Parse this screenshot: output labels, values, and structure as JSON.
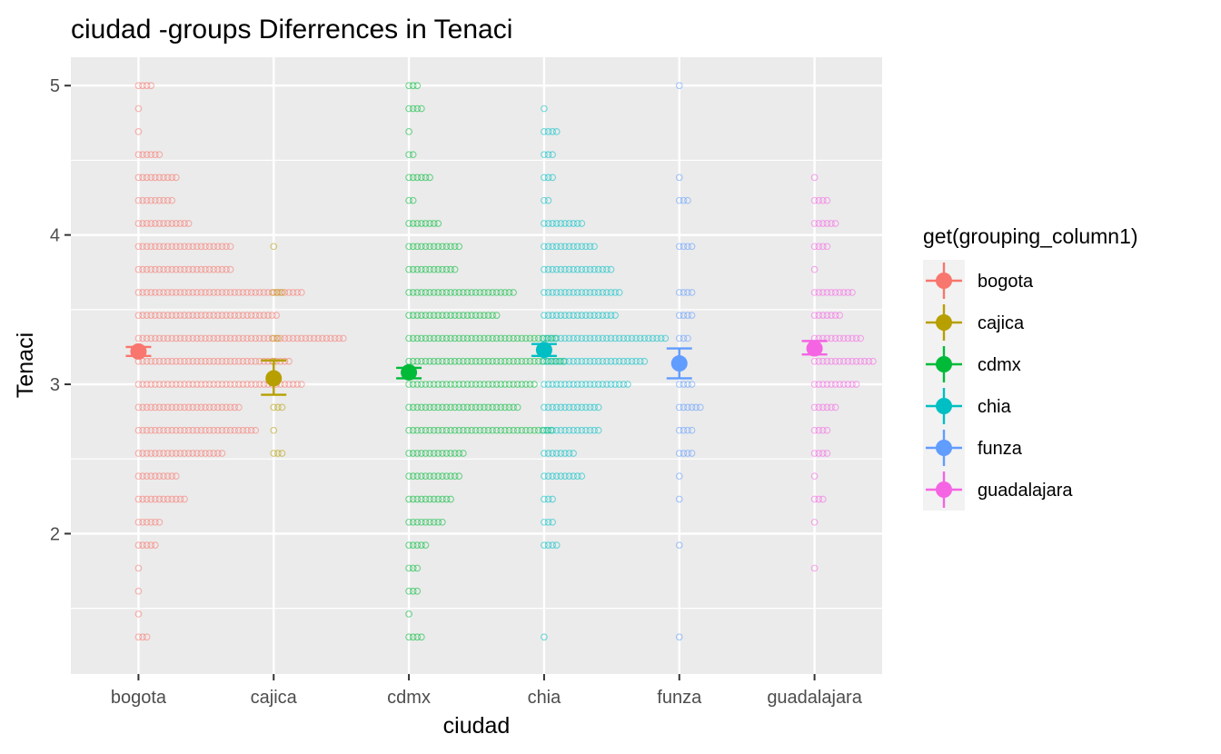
{
  "chart_data": {
    "type": "scatter",
    "title": "ciudad -groups Diferrences in  Tenaci",
    "xlabel": "ciudad",
    "ylabel": "Tenaci",
    "categories": [
      "bogota",
      "cajica",
      "cdmx",
      "chia",
      "funza",
      "guadalajara"
    ],
    "ylim": [
      1.06,
      5.19
    ],
    "yticks": [
      2,
      3,
      4,
      5
    ],
    "grid": true,
    "legend": {
      "title": "get(grouping_column1)",
      "position": "right",
      "entries": [
        "bogota",
        "cajica",
        "cdmx",
        "chia",
        "funza",
        "guadalajara"
      ]
    },
    "colors": {
      "bogota": "#F8766D",
      "cajica": "#B79F00",
      "cdmx": "#00BA38",
      "chia": "#00BFC4",
      "funza": "#619CFF",
      "guadalajara": "#F564E3"
    },
    "series": [
      {
        "name": "bogota",
        "mean": 3.22,
        "ci_low": 3.19,
        "ci_high": 3.25,
        "dotplot": [
          {
            "y": 5.0,
            "count": 4
          },
          {
            "y": 4.846,
            "count": 1
          },
          {
            "y": 4.692,
            "count": 1
          },
          {
            "y": 4.538,
            "count": 6
          },
          {
            "y": 4.385,
            "count": 10
          },
          {
            "y": 4.231,
            "count": 9
          },
          {
            "y": 4.077,
            "count": 13
          },
          {
            "y": 3.923,
            "count": 23
          },
          {
            "y": 3.769,
            "count": 23
          },
          {
            "y": 3.615,
            "count": 40
          },
          {
            "y": 3.462,
            "count": 34
          },
          {
            "y": 3.308,
            "count": 50
          },
          {
            "y": 3.154,
            "count": 37
          },
          {
            "y": 3.0,
            "count": 40
          },
          {
            "y": 2.846,
            "count": 25
          },
          {
            "y": 2.692,
            "count": 29
          },
          {
            "y": 2.538,
            "count": 21
          },
          {
            "y": 2.385,
            "count": 10
          },
          {
            "y": 2.231,
            "count": 12
          },
          {
            "y": 2.077,
            "count": 6
          },
          {
            "y": 1.923,
            "count": 5
          },
          {
            "y": 1.769,
            "count": 1
          },
          {
            "y": 1.615,
            "count": 1
          },
          {
            "y": 1.462,
            "count": 1
          },
          {
            "y": 1.308,
            "count": 3
          }
        ]
      },
      {
        "name": "cajica",
        "mean": 3.04,
        "ci_low": 2.93,
        "ci_high": 3.16,
        "dotplot": [
          {
            "y": 3.923,
            "count": 1
          },
          {
            "y": 3.615,
            "count": 3
          },
          {
            "y": 3.308,
            "count": 2
          },
          {
            "y": 3.154,
            "count": 1
          },
          {
            "y": 2.846,
            "count": 3
          },
          {
            "y": 2.692,
            "count": 1
          },
          {
            "y": 2.538,
            "count": 3
          }
        ]
      },
      {
        "name": "cdmx",
        "mean": 3.08,
        "ci_low": 3.04,
        "ci_high": 3.11,
        "dotplot": [
          {
            "y": 5.0,
            "count": 3
          },
          {
            "y": 4.846,
            "count": 4
          },
          {
            "y": 4.692,
            "count": 1
          },
          {
            "y": 4.538,
            "count": 2
          },
          {
            "y": 4.385,
            "count": 6
          },
          {
            "y": 4.231,
            "count": 2
          },
          {
            "y": 4.077,
            "count": 8
          },
          {
            "y": 3.923,
            "count": 13
          },
          {
            "y": 3.769,
            "count": 12
          },
          {
            "y": 3.615,
            "count": 26
          },
          {
            "y": 3.462,
            "count": 22
          },
          {
            "y": 3.308,
            "count": 36
          },
          {
            "y": 3.154,
            "count": 38
          },
          {
            "y": 3.0,
            "count": 31
          },
          {
            "y": 2.846,
            "count": 27
          },
          {
            "y": 2.692,
            "count": 35
          },
          {
            "y": 2.538,
            "count": 14
          },
          {
            "y": 2.385,
            "count": 13
          },
          {
            "y": 2.231,
            "count": 11
          },
          {
            "y": 2.077,
            "count": 9
          },
          {
            "y": 1.923,
            "count": 5
          },
          {
            "y": 1.769,
            "count": 3
          },
          {
            "y": 1.615,
            "count": 3
          },
          {
            "y": 1.462,
            "count": 1
          },
          {
            "y": 1.308,
            "count": 4
          }
        ]
      },
      {
        "name": "chia",
        "mean": 3.23,
        "ci_low": 3.19,
        "ci_high": 3.27,
        "dotplot": [
          {
            "y": 4.846,
            "count": 1
          },
          {
            "y": 4.692,
            "count": 4
          },
          {
            "y": 4.538,
            "count": 3
          },
          {
            "y": 4.385,
            "count": 3
          },
          {
            "y": 4.231,
            "count": 2
          },
          {
            "y": 4.077,
            "count": 10
          },
          {
            "y": 3.923,
            "count": 13
          },
          {
            "y": 3.769,
            "count": 17
          },
          {
            "y": 3.615,
            "count": 19
          },
          {
            "y": 3.462,
            "count": 18
          },
          {
            "y": 3.308,
            "count": 30
          },
          {
            "y": 3.154,
            "count": 25
          },
          {
            "y": 3.0,
            "count": 21
          },
          {
            "y": 2.846,
            "count": 14
          },
          {
            "y": 2.692,
            "count": 14
          },
          {
            "y": 2.538,
            "count": 8
          },
          {
            "y": 2.385,
            "count": 10
          },
          {
            "y": 2.231,
            "count": 3
          },
          {
            "y": 2.077,
            "count": 3
          },
          {
            "y": 1.923,
            "count": 4
          },
          {
            "y": 1.308,
            "count": 1
          }
        ]
      },
      {
        "name": "funza",
        "mean": 3.14,
        "ci_low": 3.04,
        "ci_high": 3.24,
        "dotplot": [
          {
            "y": 5.0,
            "count": 1
          },
          {
            "y": 4.385,
            "count": 1
          },
          {
            "y": 4.231,
            "count": 3
          },
          {
            "y": 3.923,
            "count": 4
          },
          {
            "y": 3.615,
            "count": 4
          },
          {
            "y": 3.462,
            "count": 4
          },
          {
            "y": 3.308,
            "count": 3
          },
          {
            "y": 3.154,
            "count": 1
          },
          {
            "y": 3.0,
            "count": 4
          },
          {
            "y": 2.846,
            "count": 6
          },
          {
            "y": 2.692,
            "count": 4
          },
          {
            "y": 2.538,
            "count": 4
          },
          {
            "y": 2.385,
            "count": 1
          },
          {
            "y": 2.231,
            "count": 1
          },
          {
            "y": 1.923,
            "count": 1
          },
          {
            "y": 1.308,
            "count": 1
          }
        ]
      },
      {
        "name": "guadalajara",
        "mean": 3.24,
        "ci_low": 3.2,
        "ci_high": 3.29,
        "dotplot": [
          {
            "y": 4.385,
            "count": 1
          },
          {
            "y": 4.231,
            "count": 4
          },
          {
            "y": 4.077,
            "count": 6
          },
          {
            "y": 3.923,
            "count": 4
          },
          {
            "y": 3.769,
            "count": 1
          },
          {
            "y": 3.615,
            "count": 10
          },
          {
            "y": 3.462,
            "count": 7
          },
          {
            "y": 3.308,
            "count": 12
          },
          {
            "y": 3.154,
            "count": 15
          },
          {
            "y": 3.0,
            "count": 11
          },
          {
            "y": 2.846,
            "count": 6
          },
          {
            "y": 2.692,
            "count": 4
          },
          {
            "y": 2.538,
            "count": 4
          },
          {
            "y": 2.385,
            "count": 1
          },
          {
            "y": 2.231,
            "count": 3
          },
          {
            "y": 2.077,
            "count": 1
          },
          {
            "y": 1.769,
            "count": 1
          }
        ]
      }
    ]
  }
}
